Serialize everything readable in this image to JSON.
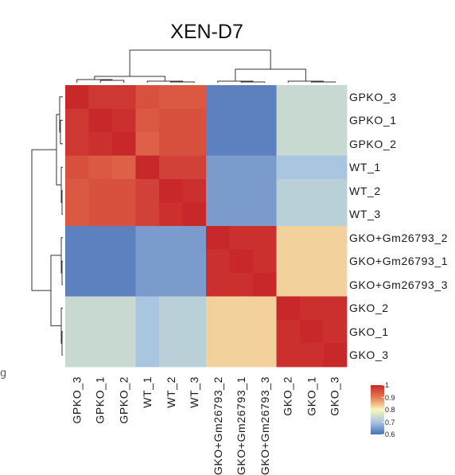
{
  "chart_data": {
    "type": "heatmap",
    "title": "XEN-D7",
    "row_labels": [
      "GPKO_3",
      "GPKO_1",
      "GPKO_2",
      "WT_1",
      "WT_2",
      "WT_3",
      "GKO+Gm26793_2",
      "GKO+Gm26793_1",
      "GKO+Gm26793_3",
      "GKO_2",
      "GKO_1",
      "GKO_3"
    ],
    "col_labels": [
      "GPKO_3",
      "GPKO_1",
      "GPKO_2",
      "WT_1",
      "WT_2",
      "WT_3",
      "GKO+Gm26793_2",
      "GKO+Gm26793_1",
      "GKO+Gm26793_3",
      "GKO_2",
      "GKO_1",
      "GKO_3"
    ],
    "values": [
      [
        1.0,
        0.98,
        0.98,
        0.95,
        0.94,
        0.94,
        0.62,
        0.62,
        0.62,
        0.74,
        0.74,
        0.74
      ],
      [
        0.98,
        1.0,
        0.99,
        0.94,
        0.95,
        0.95,
        0.62,
        0.62,
        0.62,
        0.74,
        0.74,
        0.74
      ],
      [
        0.98,
        0.99,
        1.0,
        0.93,
        0.95,
        0.95,
        0.62,
        0.62,
        0.62,
        0.74,
        0.74,
        0.74
      ],
      [
        0.95,
        0.94,
        0.93,
        1.0,
        0.97,
        0.97,
        0.65,
        0.65,
        0.65,
        0.7,
        0.7,
        0.7
      ],
      [
        0.94,
        0.95,
        0.95,
        0.97,
        1.0,
        0.99,
        0.65,
        0.65,
        0.65,
        0.72,
        0.72,
        0.72
      ],
      [
        0.94,
        0.95,
        0.95,
        0.97,
        0.99,
        1.0,
        0.65,
        0.65,
        0.65,
        0.72,
        0.72,
        0.72
      ],
      [
        0.62,
        0.62,
        0.62,
        0.65,
        0.65,
        0.65,
        1.0,
        0.99,
        0.99,
        0.83,
        0.83,
        0.83
      ],
      [
        0.62,
        0.62,
        0.62,
        0.65,
        0.65,
        0.65,
        0.99,
        1.0,
        0.99,
        0.83,
        0.83,
        0.83
      ],
      [
        0.62,
        0.62,
        0.62,
        0.65,
        0.65,
        0.65,
        0.99,
        0.99,
        1.0,
        0.83,
        0.83,
        0.83
      ],
      [
        0.74,
        0.74,
        0.74,
        0.7,
        0.72,
        0.72,
        0.83,
        0.83,
        0.83,
        1.0,
        0.99,
        0.99
      ],
      [
        0.74,
        0.74,
        0.74,
        0.7,
        0.72,
        0.72,
        0.83,
        0.83,
        0.83,
        0.99,
        1.0,
        0.99
      ],
      [
        0.74,
        0.74,
        0.74,
        0.7,
        0.72,
        0.72,
        0.83,
        0.83,
        0.83,
        0.99,
        0.99,
        1.0
      ]
    ],
    "color_scale": {
      "range": [
        0.6,
        1.0
      ],
      "ticks": [
        "1",
        "0.9",
        "0.8",
        "0.7",
        "0.6"
      ],
      "colors": [
        "#4a6fb5",
        "#a9c6e1",
        "#f7f6bb",
        "#e77a54",
        "#c8282a"
      ]
    },
    "dendrogram": "rows and columns clustered",
    "legend_placement": "bottom-right",
    "grid": false
  },
  "page": {
    "stray_glyph": "ց"
  }
}
